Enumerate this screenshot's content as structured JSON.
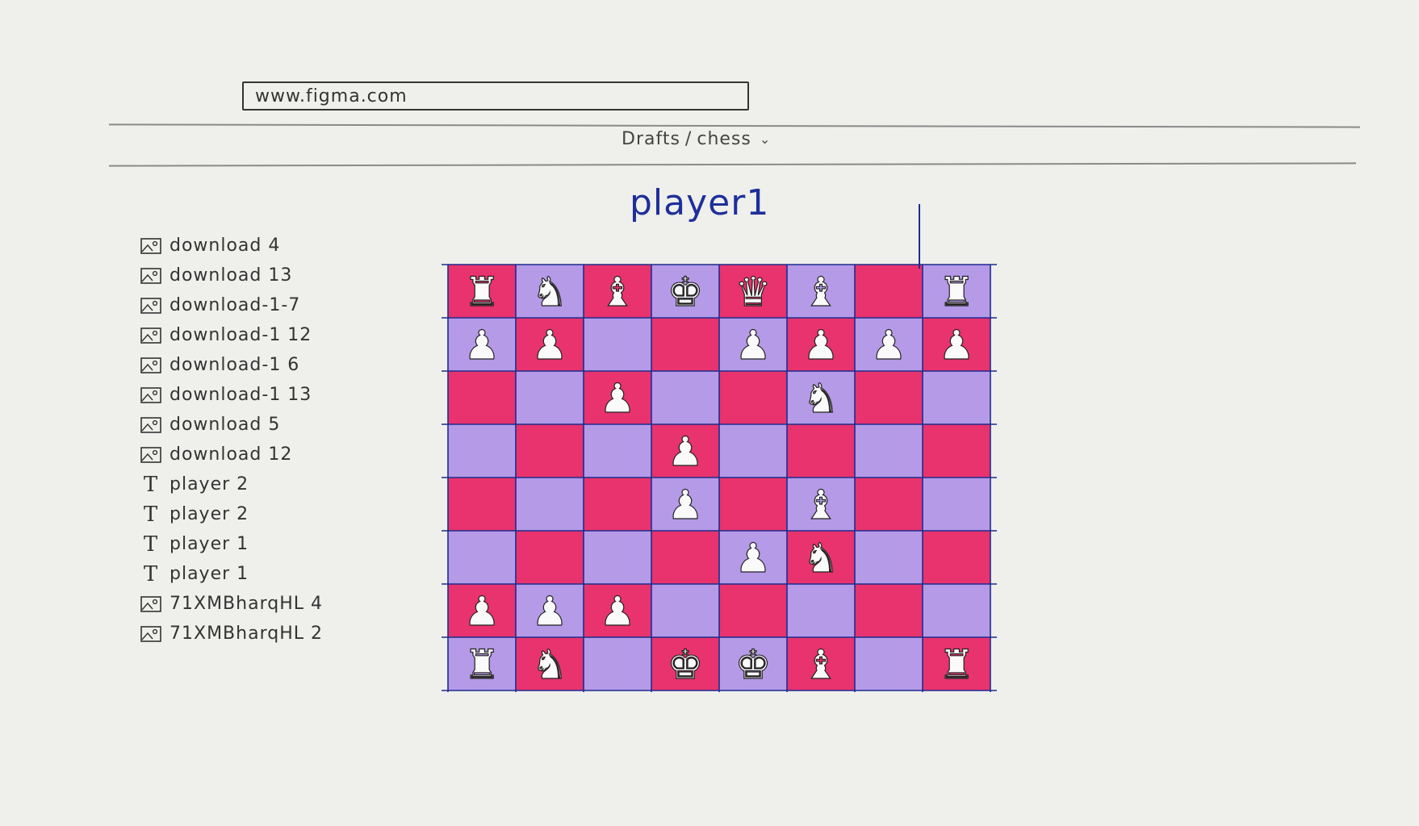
{
  "browser": {
    "url": "www.figma.com"
  },
  "header": {
    "breadcrumb_drafts": "Drafts",
    "breadcrumb_sep": "/",
    "breadcrumb_file": "chess"
  },
  "canvas": {
    "player_label": "player1"
  },
  "layers": [
    {
      "type": "image",
      "label": "download 4"
    },
    {
      "type": "image",
      "label": "download 13"
    },
    {
      "type": "image",
      "label": "download-1-7"
    },
    {
      "type": "image",
      "label": "download-1 12"
    },
    {
      "type": "image",
      "label": "download-1 6"
    },
    {
      "type": "image",
      "label": "download-1 13"
    },
    {
      "type": "image",
      "label": "download 5"
    },
    {
      "type": "image",
      "label": "download 12"
    },
    {
      "type": "text",
      "label": "player 2"
    },
    {
      "type": "text",
      "label": "player 2"
    },
    {
      "type": "text",
      "label": "player 1"
    },
    {
      "type": "text",
      "label": "player 1"
    },
    {
      "type": "image",
      "label": "71XMBharqHL 4"
    },
    {
      "type": "image",
      "label": "71XMBharqHL 2"
    }
  ],
  "board": {
    "colors": {
      "light": "#b59ae8",
      "dark": "#e8336e",
      "line": "#1d2c8e"
    },
    "pieces": [
      [
        "rook",
        "knight",
        "bishop",
        "king",
        "queen",
        "bishop",
        "",
        "rook"
      ],
      [
        "pawn",
        "pawn",
        "",
        "",
        "pawn",
        "pawn",
        "pawn",
        "pawn"
      ],
      [
        "",
        "",
        "pawn",
        "",
        "",
        "knight",
        "",
        ""
      ],
      [
        "",
        "",
        "",
        "pawn",
        "",
        "",
        "",
        ""
      ],
      [
        "",
        "",
        "",
        "pawn",
        "",
        "bishop",
        "",
        ""
      ],
      [
        "",
        "",
        "",
        "",
        "pawn",
        "knight",
        "",
        ""
      ],
      [
        "pawn",
        "pawn",
        "pawn",
        "",
        "",
        "",
        "",
        ""
      ],
      [
        "rook",
        "knight",
        "",
        "king",
        "king",
        "bishop",
        "",
        "rook"
      ]
    ]
  }
}
